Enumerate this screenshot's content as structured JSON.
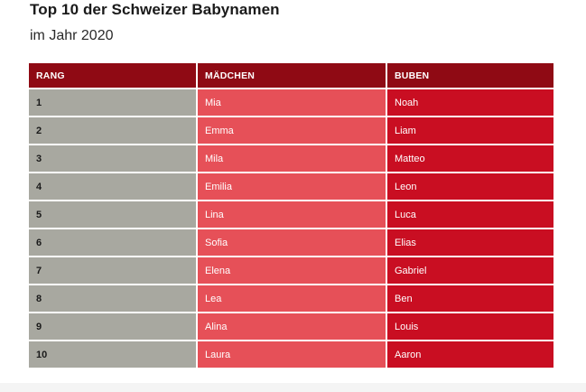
{
  "header": {
    "title": "Top 10 der Schweizer Babynamen",
    "subtitle": "im Jahr 2020"
  },
  "table": {
    "columns": [
      "RANG",
      "MÄDCHEN",
      "BUBEN"
    ],
    "rows": [
      {
        "rank": "1",
        "girl": "Mia",
        "boy": "Noah"
      },
      {
        "rank": "2",
        "girl": "Emma",
        "boy": "Liam"
      },
      {
        "rank": "3",
        "girl": "Mila",
        "boy": "Matteo"
      },
      {
        "rank": "4",
        "girl": "Emilia",
        "boy": "Leon"
      },
      {
        "rank": "5",
        "girl": "Lina",
        "boy": "Luca"
      },
      {
        "rank": "6",
        "girl": "Sofia",
        "boy": "Elias"
      },
      {
        "rank": "7",
        "girl": "Elena",
        "boy": "Gabriel"
      },
      {
        "rank": "8",
        "girl": "Lea",
        "boy": "Ben"
      },
      {
        "rank": "9",
        "girl": "Alina",
        "boy": "Louis"
      },
      {
        "rank": "10",
        "girl": "Laura",
        "boy": "Aaron"
      }
    ]
  },
  "colors": {
    "header_bg": "#8f0a14",
    "rank_bg": "#a8a8a0",
    "girls_bg": "#e65058",
    "boys_bg": "#c90e22"
  }
}
